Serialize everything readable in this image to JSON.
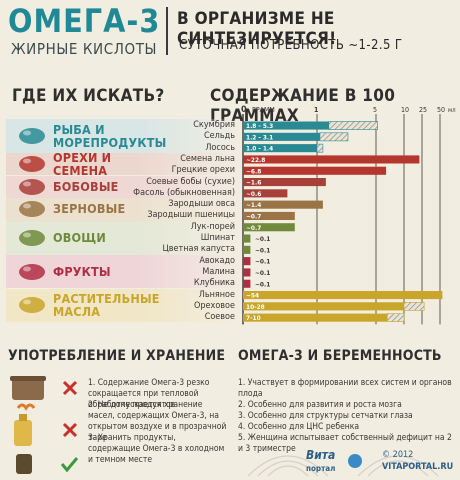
{
  "header": {
    "title": "ОМЕГА-3",
    "subtitle": "ЖИРНЫЕ КИСЛОТЫ",
    "headline": "В ОРГАНИЗМЕ НЕ СИНТЕЗИРУЕТСЯ!",
    "need": "СУТОЧНАЯ ПОТРЕБНОСТЬ ~1-2.5 Г"
  },
  "sections": {
    "where": "ГДЕ ИХ ИСКАТЬ?",
    "content": "СОДЕРЖАНИЕ В 100 ГРАММАХ"
  },
  "categories": [
    {
      "name": "РЫБА И МОРЕПРОДУКТЫ",
      "icon": "fish-icon",
      "color": "#2a8a93"
    },
    {
      "name": "ОРЕХИ И СЕМЕНА",
      "icon": "nuts-icon",
      "color": "#b5362d"
    },
    {
      "name": "БОБОВЫЕ",
      "icon": "beans-icon",
      "color": "#a8403a"
    },
    {
      "name": "ЗЕРНОВЫЕ",
      "icon": "grain-icon",
      "color": "#9a7446"
    },
    {
      "name": "ОВОЩИ",
      "icon": "leek-icon",
      "color": "#6f8a3a"
    },
    {
      "name": "ФРУКТЫ",
      "icon": "raspberry-icon",
      "color": "#b02e44"
    },
    {
      "name": "РАСТИТЕЛЬНЫЕ МАСЛА",
      "icon": "oil-icon",
      "color": "#c9a52a"
    }
  ],
  "chart_data": {
    "type": "bar",
    "xlabel": "ГРАММ",
    "tick_labels": [
      "0",
      "1",
      "5",
      "10",
      "25",
      "50"
    ],
    "tick_unit": "мл",
    "items": [
      {
        "name": "Скумбрия",
        "value": 2.3,
        "label": "1.8 - 5.3",
        "range": [
          1.8,
          5.3
        ],
        "category": 0
      },
      {
        "name": "Сельдь",
        "value": 2.3,
        "label": "1.2 - 3.1",
        "range": [
          1.2,
          3.1
        ],
        "category": 0
      },
      {
        "name": "Лосось",
        "value": 1.4,
        "label": "1.0 - 1.4",
        "range": [
          1.0,
          1.4
        ],
        "category": 0
      },
      {
        "name": "Семена льна",
        "value": 22.8,
        "label": "~22.8",
        "category": 1
      },
      {
        "name": "Грецкие орехи",
        "value": 6.8,
        "label": "~6.8",
        "category": 1
      },
      {
        "name": "Соевые бобы (сухие)",
        "value": 1.6,
        "label": "~1.6",
        "category": 2
      },
      {
        "name": "Фасоль (обыкновенная)",
        "value": 0.6,
        "label": "~0.6",
        "category": 2
      },
      {
        "name": "Зародыши овса",
        "value": 1.4,
        "label": "~1.4",
        "category": 3
      },
      {
        "name": "Зародыши пшеницы",
        "value": 0.7,
        "label": "~0.7",
        "category": 3
      },
      {
        "name": "Лук-порей",
        "value": 0.7,
        "label": "~0.7",
        "category": 4
      },
      {
        "name": "Шпинат",
        "value": 0.1,
        "label": "~0.1",
        "category": 4
      },
      {
        "name": "Цветная капуста",
        "value": 0.1,
        "label": "~0.1",
        "category": 4
      },
      {
        "name": "Авокадо",
        "value": 0.1,
        "label": "~0.1",
        "category": 5
      },
      {
        "name": "Малина",
        "value": 0.1,
        "label": "~0.1",
        "category": 5
      },
      {
        "name": "Клубника",
        "value": 0.1,
        "label": "~0.1",
        "category": 5
      },
      {
        "name": "Льняное",
        "value": 54,
        "label": "~54",
        "category": 6
      },
      {
        "name": "Ореховое",
        "value": 10,
        "label": "10-28",
        "range": [
          10,
          28
        ],
        "category": 6
      },
      {
        "name": "Соевое",
        "value": 7,
        "label": "7-10",
        "range": [
          7,
          10
        ],
        "category": 6
      }
    ]
  },
  "storage": {
    "title": "УПОТРЕБЛЕНИЕ И ХРАНЕНИЕ",
    "notes": [
      "1. Содержание Омега-3 резко сокращается при тепловой обработке продуктов",
      "2. Не допускается хранение масел, содержащих Омега-3, на открытом воздухе и в прозрачной таре",
      "3. Хранить продукты, содержащие Омега-3 в холодном и темном месте"
    ]
  },
  "pregnancy": {
    "title": "ОМЕГА-3 И БЕРЕМЕННОСТЬ",
    "notes": [
      "1. Участвует в формировании всех систем и органов плода",
      "2. Особенно для развития и роста мозга",
      "3. Особенно для структуры сетчатки глаза",
      "4. Особенно для ЦНС ребенка",
      "5. Женщина испытывает собственный дефицит на 2 и 3 триместре"
    ]
  },
  "footer": {
    "logo_name": "Вита",
    "logo_sub": "портал",
    "copyright": "© 2012",
    "site": "VITAPORTAL.RU"
  },
  "colors": {
    "accent": "#1f8a95",
    "background": "#f2ede1"
  }
}
